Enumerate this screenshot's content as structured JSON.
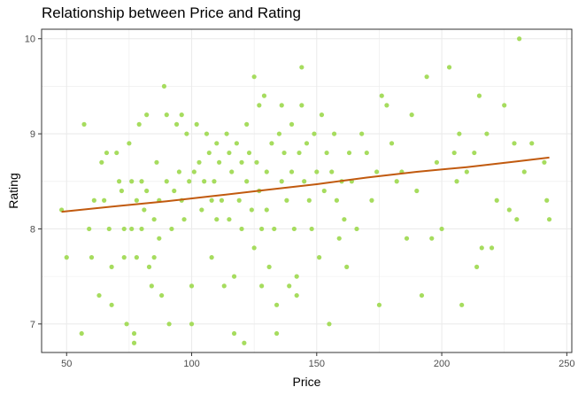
{
  "chart_data": {
    "type": "scatter",
    "title": "Relationship between Price and Rating",
    "xlabel": "Price",
    "ylabel": "Rating",
    "xlim": [
      40,
      252
    ],
    "ylim": [
      6.7,
      10.1
    ],
    "xticks": [
      50,
      100,
      150,
      200,
      250
    ],
    "yticks": [
      7,
      8,
      9,
      10
    ],
    "grid": true,
    "colors": {
      "points": "#a6dc5e",
      "trend": "#c15a0f",
      "grid": "#ebebeb",
      "panel_border": "#333333"
    },
    "series": [
      {
        "type": "scatter",
        "points": [
          [
            48,
            8.2
          ],
          [
            50,
            7.7
          ],
          [
            56,
            6.9
          ],
          [
            57,
            9.1
          ],
          [
            59,
            8.0
          ],
          [
            60,
            7.7
          ],
          [
            61,
            8.3
          ],
          [
            63,
            7.3
          ],
          [
            64,
            8.7
          ],
          [
            65,
            8.3
          ],
          [
            66,
            8.8
          ],
          [
            67,
            8.0
          ],
          [
            68,
            7.6
          ],
          [
            68,
            7.2
          ],
          [
            70,
            8.8
          ],
          [
            71,
            8.5
          ],
          [
            72,
            8.4
          ],
          [
            73,
            8.0
          ],
          [
            73,
            7.7
          ],
          [
            74,
            7.0
          ],
          [
            75,
            8.9
          ],
          [
            76,
            8.5
          ],
          [
            76,
            8.0
          ],
          [
            77,
            6.9
          ],
          [
            77,
            6.8
          ],
          [
            78,
            8.3
          ],
          [
            78,
            7.7
          ],
          [
            79,
            9.1
          ],
          [
            80,
            8.5
          ],
          [
            80,
            8.0
          ],
          [
            81,
            8.2
          ],
          [
            82,
            9.2
          ],
          [
            82,
            8.4
          ],
          [
            83,
            7.6
          ],
          [
            84,
            7.4
          ],
          [
            85,
            8.1
          ],
          [
            85,
            7.7
          ],
          [
            86,
            8.7
          ],
          [
            87,
            8.3
          ],
          [
            87,
            7.9
          ],
          [
            88,
            7.3
          ],
          [
            89,
            9.5
          ],
          [
            90,
            9.2
          ],
          [
            90,
            8.5
          ],
          [
            91,
            7.0
          ],
          [
            92,
            8.0
          ],
          [
            93,
            8.4
          ],
          [
            94,
            9.1
          ],
          [
            95,
            8.6
          ],
          [
            96,
            9.2
          ],
          [
            96,
            8.3
          ],
          [
            97,
            8.1
          ],
          [
            98,
            9.0
          ],
          [
            99,
            8.5
          ],
          [
            100,
            7.4
          ],
          [
            100,
            7.0
          ],
          [
            101,
            8.6
          ],
          [
            102,
            9.1
          ],
          [
            103,
            8.7
          ],
          [
            104,
            8.2
          ],
          [
            105,
            8.5
          ],
          [
            106,
            9.0
          ],
          [
            107,
            8.8
          ],
          [
            108,
            8.3
          ],
          [
            108,
            7.7
          ],
          [
            109,
            8.5
          ],
          [
            110,
            8.9
          ],
          [
            110,
            8.1
          ],
          [
            111,
            8.7
          ],
          [
            112,
            8.3
          ],
          [
            113,
            7.4
          ],
          [
            114,
            9.0
          ],
          [
            115,
            8.8
          ],
          [
            115,
            8.1
          ],
          [
            116,
            8.6
          ],
          [
            117,
            7.5
          ],
          [
            117,
            6.9
          ],
          [
            118,
            8.9
          ],
          [
            119,
            8.3
          ],
          [
            120,
            8.7
          ],
          [
            120,
            8.0
          ],
          [
            121,
            6.8
          ],
          [
            122,
            9.1
          ],
          [
            122,
            8.5
          ],
          [
            123,
            8.8
          ],
          [
            124,
            8.2
          ],
          [
            125,
            7.8
          ],
          [
            125,
            9.6
          ],
          [
            126,
            8.7
          ],
          [
            127,
            9.3
          ],
          [
            127,
            8.4
          ],
          [
            128,
            8.0
          ],
          [
            128,
            7.4
          ],
          [
            129,
            9.4
          ],
          [
            130,
            8.6
          ],
          [
            130,
            8.2
          ],
          [
            131,
            7.6
          ],
          [
            132,
            8.9
          ],
          [
            133,
            8.0
          ],
          [
            134,
            7.2
          ],
          [
            134,
            6.9
          ],
          [
            135,
            9.0
          ],
          [
            136,
            9.3
          ],
          [
            136,
            8.5
          ],
          [
            137,
            8.8
          ],
          [
            138,
            8.3
          ],
          [
            139,
            7.4
          ],
          [
            140,
            9.1
          ],
          [
            140,
            8.6
          ],
          [
            141,
            8.0
          ],
          [
            142,
            7.5
          ],
          [
            142,
            7.3
          ],
          [
            143,
            8.8
          ],
          [
            144,
            9.3
          ],
          [
            144,
            9.7
          ],
          [
            145,
            8.5
          ],
          [
            146,
            8.9
          ],
          [
            147,
            8.3
          ],
          [
            148,
            8.0
          ],
          [
            149,
            9.0
          ],
          [
            150,
            8.6
          ],
          [
            151,
            7.7
          ],
          [
            152,
            9.2
          ],
          [
            153,
            8.4
          ],
          [
            154,
            8.8
          ],
          [
            155,
            7.0
          ],
          [
            156,
            8.6
          ],
          [
            157,
            9.0
          ],
          [
            158,
            8.3
          ],
          [
            159,
            7.9
          ],
          [
            160,
            8.5
          ],
          [
            161,
            8.1
          ],
          [
            162,
            7.6
          ],
          [
            163,
            8.8
          ],
          [
            164,
            8.5
          ],
          [
            166,
            8.0
          ],
          [
            168,
            9.0
          ],
          [
            170,
            8.8
          ],
          [
            172,
            8.3
          ],
          [
            174,
            8.6
          ],
          [
            175,
            7.2
          ],
          [
            176,
            9.4
          ],
          [
            178,
            9.3
          ],
          [
            180,
            8.9
          ],
          [
            182,
            8.5
          ],
          [
            184,
            8.6
          ],
          [
            186,
            7.9
          ],
          [
            188,
            9.2
          ],
          [
            190,
            8.4
          ],
          [
            192,
            7.3
          ],
          [
            194,
            9.6
          ],
          [
            196,
            7.9
          ],
          [
            198,
            8.7
          ],
          [
            200,
            8.0
          ],
          [
            203,
            9.7
          ],
          [
            205,
            8.8
          ],
          [
            206,
            8.5
          ],
          [
            207,
            9.0
          ],
          [
            208,
            7.2
          ],
          [
            210,
            8.6
          ],
          [
            213,
            8.8
          ],
          [
            214,
            7.6
          ],
          [
            215,
            9.4
          ],
          [
            216,
            7.8
          ],
          [
            218,
            9.0
          ],
          [
            220,
            7.8
          ],
          [
            222,
            8.3
          ],
          [
            225,
            9.3
          ],
          [
            227,
            8.2
          ],
          [
            229,
            8.9
          ],
          [
            230,
            8.1
          ],
          [
            231,
            10.0
          ],
          [
            233,
            8.6
          ],
          [
            236,
            8.9
          ],
          [
            241,
            8.7
          ],
          [
            242,
            8.3
          ],
          [
            243,
            8.1
          ]
        ]
      },
      {
        "type": "line",
        "x": [
          48,
          70,
          90,
          110,
          130,
          150,
          170,
          190,
          210,
          230,
          243
        ],
        "y": [
          8.18,
          8.24,
          8.29,
          8.35,
          8.41,
          8.47,
          8.54,
          8.6,
          8.65,
          8.71,
          8.75
        ]
      }
    ]
  }
}
